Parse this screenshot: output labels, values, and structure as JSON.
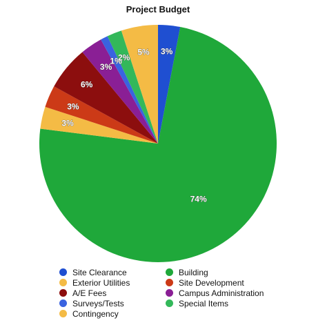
{
  "chart_data": {
    "type": "pie",
    "title": "Project Budget",
    "slices": [
      {
        "label": "Site Clearance",
        "value": 3,
        "display": "3%",
        "color": "#1f4fd1"
      },
      {
        "label": "Building",
        "value": 74,
        "display": "74%",
        "color": "#1fa83a"
      },
      {
        "label": "Exterior Utilities",
        "value": 3,
        "display": "3%",
        "color": "#f4bb45"
      },
      {
        "label": "Site Development",
        "value": 3,
        "display": "3%",
        "color": "#cc3a17"
      },
      {
        "label": "A/E Fees",
        "value": 6,
        "display": "6%",
        "color": "#8c0e0e"
      },
      {
        "label": "Campus Administration",
        "value": 3,
        "display": "3%",
        "color": "#8a1f95"
      },
      {
        "label": "Surveys/Tests",
        "value": 1,
        "display": "1%",
        "color": "#3a63e0"
      },
      {
        "label": "Special Items",
        "value": 2,
        "display": "2%",
        "color": "#33b85a"
      },
      {
        "label": "Contingency",
        "value": 5,
        "display": "5%",
        "color": "#f4bb45"
      }
    ],
    "legend": [
      "Site Clearance",
      "Building",
      "Exterior Utilities",
      "Site Development",
      "A/E Fees",
      "Campus Administration",
      "Surveys/Tests",
      "Special Items",
      "Contingency"
    ],
    "legend_placement": "bottom",
    "direction": "clockwise from top"
  }
}
